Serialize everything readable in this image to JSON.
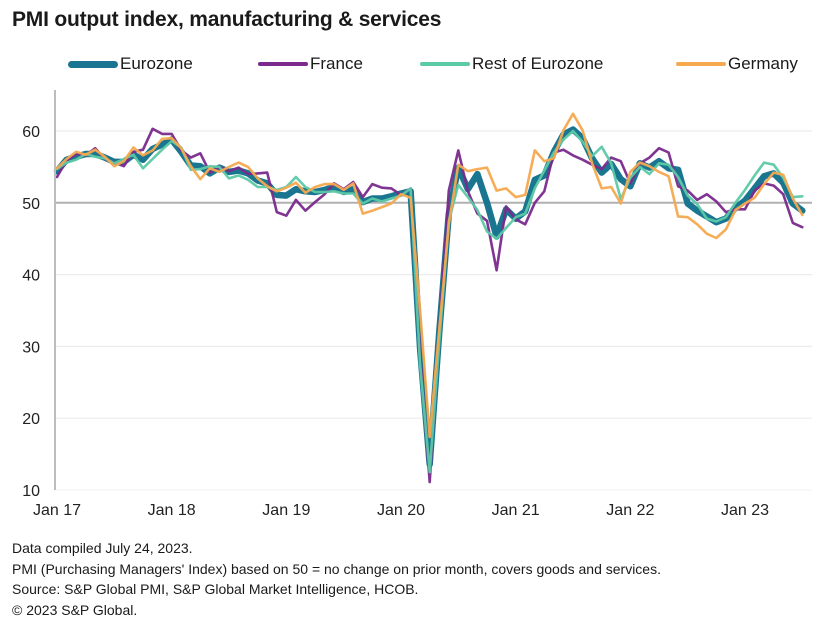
{
  "title": "PMI output index, manufacturing & services",
  "legend": [
    {
      "label": "Eurozone",
      "color": "#1a7690"
    },
    {
      "label": "France",
      "color": "#7a2a8c"
    },
    {
      "label": "Rest of Eurozone",
      "color": "#5cc9a7"
    },
    {
      "label": "Germany",
      "color": "#f6a94f"
    }
  ],
  "footer": {
    "line1": "Data compiled July 24, 2023.",
    "line2": "PMI (Purchasing Managers' Index) based on 50 = no change on prior month, covers goods and services.",
    "line3": "Source: S&P Global PMI,  S&P Global Market Intelligence,  HCOB.",
    "line4": "© 2023 S&P Global."
  },
  "chart_data": {
    "type": "line",
    "title": "PMI output index, manufacturing & services",
    "xlabel": "",
    "ylabel": "",
    "ylim": [
      10,
      65
    ],
    "yticks": [
      10,
      20,
      30,
      40,
      50,
      60
    ],
    "reference_line": 50,
    "grid": true,
    "legend_position": "top",
    "x_start": "Jan 2017",
    "x_end": "Jul 2023",
    "x_frequency": "monthly",
    "xtick_labels": [
      "Jan 17",
      "Jan 18",
      "Jan 19",
      "Jan 20",
      "Jan 21",
      "Jan 22",
      "Jan 23"
    ],
    "series": [
      {
        "name": "Eurozone",
        "color": "#1a7690",
        "values": [
          54.4,
          56.0,
          56.4,
          56.8,
          56.8,
          56.3,
          55.7,
          55.7,
          56.7,
          56.0,
          57.5,
          58.1,
          58.8,
          57.1,
          55.2,
          55.1,
          54.1,
          54.9,
          54.3,
          54.5,
          54.1,
          53.1,
          52.7,
          51.1,
          51.0,
          51.9,
          51.6,
          51.5,
          51.8,
          52.2,
          51.5,
          51.9,
          50.1,
          50.6,
          50.6,
          50.9,
          51.3,
          51.6,
          29.7,
          13.6,
          31.9,
          48.5,
          54.9,
          51.9,
          54.0,
          50.0,
          45.3,
          49.1,
          47.8,
          48.8,
          53.2,
          53.8,
          57.1,
          59.5,
          60.2,
          59.0,
          56.2,
          54.2,
          55.4,
          53.3,
          52.3,
          55.5,
          54.9,
          55.8,
          54.8,
          54.6,
          49.9,
          48.9,
          48.1,
          47.3,
          47.8,
          49.3,
          50.3,
          52.0,
          53.7,
          54.1,
          52.8,
          49.9,
          48.9
        ]
      },
      {
        "name": "France",
        "color": "#7a2a8c",
        "values": [
          53.6,
          55.9,
          56.8,
          56.6,
          57.6,
          56.1,
          55.6,
          55.1,
          57.1,
          57.4,
          60.3,
          59.6,
          59.6,
          57.3,
          56.3,
          56.9,
          54.2,
          55.0,
          54.4,
          54.9,
          54.0,
          54.1,
          54.2,
          48.7,
          48.2,
          50.4,
          48.9,
          50.1,
          51.2,
          52.7,
          51.9,
          52.9,
          50.8,
          52.6,
          52.1,
          52.0,
          51.1,
          52.0,
          28.9,
          11.1,
          32.1,
          51.7,
          57.3,
          51.6,
          48.5,
          47.5,
          40.6,
          49.5,
          47.7,
          47.0,
          50.0,
          51.6,
          57.0,
          57.4,
          56.6,
          56.0,
          55.3,
          54.7,
          56.3,
          55.8,
          52.7,
          55.5,
          56.3,
          57.6,
          57.0,
          52.3,
          51.7,
          50.4,
          51.2,
          50.2,
          48.7,
          49.1,
          49.1,
          51.7,
          52.7,
          52.4,
          51.2,
          47.2,
          46.6
        ]
      },
      {
        "name": "Rest of Eurozone",
        "color": "#5cc9a7",
        "values": [
          54.7,
          55.6,
          56.0,
          56.8,
          56.4,
          56.2,
          55.5,
          56.1,
          56.7,
          54.8,
          56.1,
          57.4,
          58.6,
          57.7,
          54.6,
          54.7,
          55.1,
          55.0,
          53.4,
          53.8,
          53.2,
          52.2,
          52.2,
          51.8,
          52.2,
          53.6,
          52.2,
          51.5,
          51.5,
          51.6,
          51.3,
          51.3,
          49.9,
          50.6,
          50.2,
          50.6,
          51.0,
          52.0,
          27.5,
          12.5,
          30.5,
          47.5,
          52.5,
          50.8,
          49.0,
          46.0,
          45.0,
          46.5,
          48.0,
          48.5,
          52.0,
          54.5,
          57.0,
          58.8,
          60.0,
          58.5,
          56.5,
          57.8,
          55.5,
          50.5,
          53.5,
          55.0,
          54.0,
          55.5,
          55.3,
          53.6,
          51.0,
          49.8,
          47.8,
          47.4,
          48.0,
          50.0,
          51.8,
          53.8,
          55.6,
          55.3,
          53.5,
          50.8,
          50.9
        ]
      },
      {
        "name": "Germany",
        "color": "#f6a94f",
        "values": [
          54.8,
          56.1,
          57.1,
          56.7,
          57.4,
          56.4,
          55.1,
          55.8,
          57.7,
          56.6,
          57.3,
          58.9,
          59.0,
          57.6,
          55.1,
          53.3,
          54.8,
          54.3,
          55.0,
          55.6,
          55.0,
          53.4,
          52.3,
          51.6,
          52.1,
          52.8,
          51.4,
          52.2,
          52.6,
          52.6,
          51.8,
          52.7,
          48.5,
          48.9,
          49.4,
          49.9,
          51.2,
          50.7,
          35.0,
          17.4,
          32.3,
          47.0,
          55.3,
          54.4,
          54.7,
          54.9,
          51.7,
          52.0,
          50.8,
          51.1,
          57.3,
          55.8,
          56.2,
          60.1,
          62.4,
          60.1,
          55.5,
          52.0,
          52.2,
          49.9,
          54.3,
          55.6,
          55.1,
          54.3,
          53.7,
          48.1,
          48.0,
          47.0,
          45.7,
          45.1,
          46.3,
          49.0,
          49.9,
          50.7,
          52.6,
          54.2,
          53.9,
          50.6,
          48.3
        ]
      }
    ]
  }
}
